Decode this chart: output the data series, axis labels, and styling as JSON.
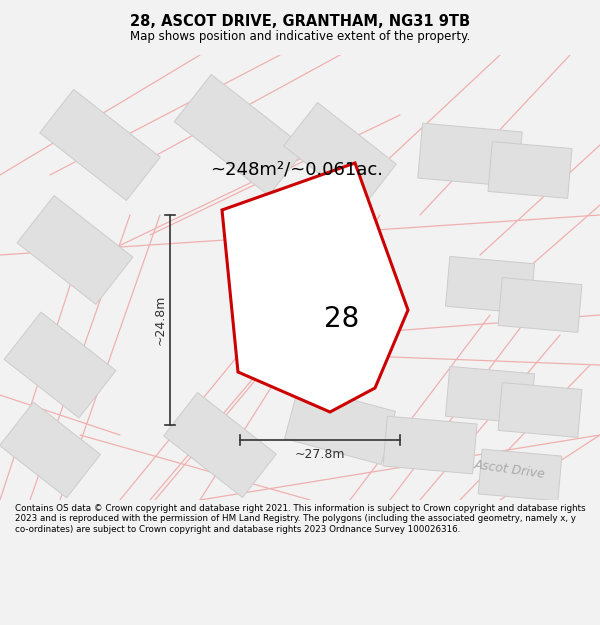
{
  "title": "28, ASCOT DRIVE, GRANTHAM, NG31 9TB",
  "subtitle": "Map shows position and indicative extent of the property.",
  "area_text": "~248m²/~0.061ac.",
  "property_number": "28",
  "dim_width": "~27.8m",
  "dim_height": "~24.8m",
  "footer": "Contains OS data © Crown copyright and database right 2021. This information is subject to Crown copyright and database rights 2023 and is reproduced with the permission of HM Land Registry. The polygons (including the associated geometry, namely x, y co-ordinates) are subject to Crown copyright and database rights 2023 Ordnance Survey 100026316.",
  "bg_color": "#f2f2f2",
  "map_bg_color": "#ffffff",
  "property_fill": "#ffffff",
  "property_edge": "#cc0000",
  "nearby_fill": "#e0e0e0",
  "nearby_edge": "#cccccc",
  "road_color": "#f0b0b0",
  "title_color": "#000000",
  "text_color": "#000000",
  "dim_color": "#333333",
  "ascot_drive_label": "Ascot Drive",
  "ascot_drive_color": "#aaaaaa"
}
